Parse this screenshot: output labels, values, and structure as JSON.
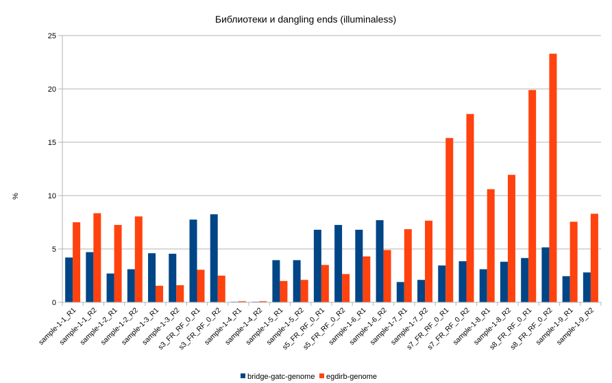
{
  "chart_data": {
    "type": "bar",
    "title": "Библиотеки и dangling ends (illuminaless)",
    "xlabel": "",
    "ylabel": "%",
    "ylim": [
      0,
      25
    ],
    "yticks": [
      0,
      5,
      10,
      15,
      20,
      25
    ],
    "grid": "horizontal",
    "legend_position": "bottom",
    "categories": [
      "sample-1-1_R1",
      "sample-1-1_R2",
      "sample-1-2_R1",
      "sample-1-2_R2",
      "sample-1-3_R1",
      "sample-1-3_R2",
      "s3_FR_RF_0_R1",
      "s3_FR_RF_0_R2",
      "sample-1-4_R1",
      "sample-1-4_R2",
      "sample-1-5_R1",
      "sample-1-5_R2",
      "s5_FR_RF_0_R1",
      "s5_FR_RF_0_R2",
      "sample-1-6_R1",
      "sample-1-6_R2",
      "sample-1-7_R1",
      "sample-1-7_R2",
      "s7_FR_RF_0_R1",
      "s7_FR_RF_0_R2",
      "sample-1-8_R1",
      "sample-1-8_R2",
      "s8_FR_RF_0_R1",
      "s8_FR_RF_0_R2",
      "sample-1-9_R1",
      "sample-1-9_R2"
    ],
    "series": [
      {
        "name": "bridge-gatc-genome",
        "color": "#004586",
        "values": [
          4.2,
          4.7,
          2.7,
          3.1,
          4.6,
          4.55,
          7.75,
          8.25,
          0.05,
          0.05,
          3.95,
          3.95,
          6.8,
          7.25,
          6.8,
          7.7,
          1.9,
          2.1,
          3.45,
          3.85,
          3.1,
          3.8,
          4.15,
          5.15,
          2.45,
          2.8
        ]
      },
      {
        "name": "egdirb-genome",
        "color": "#ff420e",
        "values": [
          7.5,
          8.35,
          7.25,
          8.05,
          1.55,
          1.6,
          3.05,
          2.5,
          0.1,
          0.1,
          2.0,
          2.1,
          3.5,
          2.65,
          4.3,
          4.9,
          6.85,
          7.65,
          15.4,
          17.65,
          10.6,
          11.95,
          19.9,
          23.3,
          7.55,
          8.3
        ]
      }
    ]
  }
}
